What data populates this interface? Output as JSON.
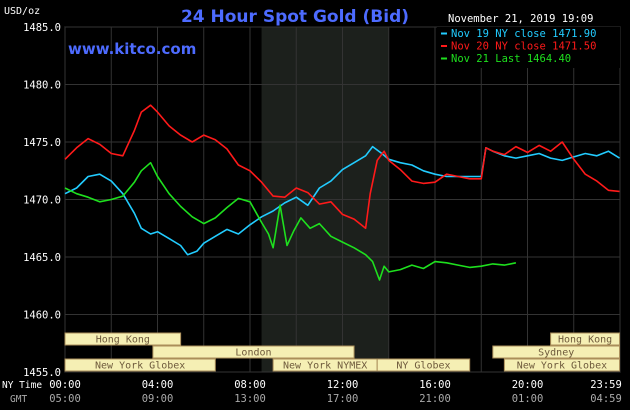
{
  "header": {
    "title": "24 Hour Spot Gold (Bid)",
    "datetime": "November 21, 2019 19:09",
    "unit": "USD/oz",
    "brand": "www.kitco.com"
  },
  "colors": {
    "background": "#000000",
    "plot_bg": "#000000",
    "shade": "#1c201c",
    "grid": "#333333",
    "axis_text": "#ffffff",
    "title": "#4d6bff",
    "brand": "#4d6bff",
    "nov19": "#22ccff",
    "nov20": "#ff1a1a",
    "nov21": "#1ee01e",
    "session_bg": "#f5efb4",
    "session_border": "#aa8e5a",
    "session_text": "#6e5a3c"
  },
  "legend": [
    {
      "label": "Nov 19 NY close 1471.90",
      "color": "#22ccff"
    },
    {
      "label": "Nov 20 NY close 1471.50",
      "color": "#ff1a1a"
    },
    {
      "label": "Nov 21 Last 1464.40",
      "color": "#1ee01e"
    }
  ],
  "axes": {
    "y_ticks": [
      "1485.0",
      "1480.0",
      "1475.0",
      "1470.0",
      "1465.0",
      "1460.0",
      "1455.0"
    ],
    "ny_label": "NY Time",
    "gmt_label": "GMT",
    "ny_ticks": [
      "00:00",
      "04:00",
      "08:00",
      "12:00",
      "16:00",
      "20:00",
      "23:59"
    ],
    "gmt_ticks": [
      "05:00",
      "09:00",
      "13:00",
      "17:00",
      "21:00",
      "01:00",
      "04:59"
    ]
  },
  "sessions": [
    {
      "label": "Hong Kong",
      "start": 0,
      "end": 5,
      "row": 0
    },
    {
      "label": "Hong Kong",
      "start": 21,
      "end": 23.98,
      "row": 0
    },
    {
      "label": "London",
      "start": 3.8,
      "end": 12.5,
      "row": 1
    },
    {
      "label": "Sydney",
      "start": 18.5,
      "end": 23.98,
      "row": 1
    },
    {
      "label": "New York Globex",
      "start": 0,
      "end": 6.5,
      "row": 2
    },
    {
      "label": "New York NYMEX",
      "start": 9,
      "end": 13.5,
      "row": 2
    },
    {
      "label": "NY Globex",
      "start": 13.5,
      "end": 17.5,
      "row": 2
    },
    {
      "label": "New York Globex",
      "start": 19,
      "end": 23.98,
      "row": 2
    }
  ],
  "chart_data": {
    "type": "line",
    "title": "24 Hour Spot Gold (Bid)",
    "ylabel": "USD/oz",
    "xlabel": "NY Time",
    "xlim": [
      0,
      24
    ],
    "ylim": [
      1455,
      1485
    ],
    "shaded_x": [
      8.5,
      14
    ],
    "grid": true,
    "legend_position": "top-right",
    "series": [
      {
        "name": "Nov 19 NY close 1471.90",
        "color": "#22ccff",
        "x": [
          0,
          0.5,
          1,
          1.5,
          2,
          2.5,
          3,
          3.3,
          3.7,
          4,
          4.5,
          5,
          5.3,
          5.7,
          6,
          6.5,
          7,
          7.5,
          8,
          8.5,
          9,
          9.5,
          10,
          10.5,
          11,
          11.5,
          12,
          12.5,
          13,
          13.3,
          13.7,
          14,
          14.5,
          15,
          15.5,
          16,
          16.5,
          17,
          17.5,
          18,
          18.2,
          18.5,
          19,
          19.5,
          20,
          20.5,
          21,
          21.5,
          22,
          22.5,
          23,
          23.5,
          23.98
        ],
        "values": [
          1470.5,
          1471.0,
          1472.0,
          1472.2,
          1471.6,
          1470.5,
          1468.8,
          1467.5,
          1467.0,
          1467.2,
          1466.6,
          1466.0,
          1465.2,
          1465.5,
          1466.2,
          1466.8,
          1467.4,
          1467.0,
          1467.8,
          1468.5,
          1469.0,
          1469.7,
          1470.2,
          1469.5,
          1471.0,
          1471.6,
          1472.6,
          1473.2,
          1473.8,
          1474.6,
          1474.0,
          1473.5,
          1473.2,
          1473.0,
          1472.5,
          1472.2,
          1472.0,
          1472.0,
          1472.0,
          1472.0,
          1474.5,
          1474.2,
          1473.8,
          1473.6,
          1473.8,
          1474.0,
          1473.6,
          1473.4,
          1473.7,
          1474.0,
          1473.8,
          1474.2,
          1473.6
        ]
      },
      {
        "name": "Nov 20 NY close 1471.50",
        "color": "#ff1a1a",
        "x": [
          0,
          0.5,
          1,
          1.5,
          2,
          2.5,
          3,
          3.3,
          3.7,
          4,
          4.5,
          5,
          5.5,
          6,
          6.5,
          7,
          7.5,
          8,
          8.5,
          9,
          9.5,
          10,
          10.5,
          11,
          11.5,
          12,
          12.5,
          13,
          13.2,
          13.5,
          13.8,
          14,
          14.5,
          15,
          15.5,
          16,
          16.5,
          17,
          17.5,
          18,
          18.2,
          18.5,
          19,
          19.5,
          20,
          20.5,
          21,
          21.5,
          22,
          22.5,
          23,
          23.5,
          23.98
        ],
        "values": [
          1473.5,
          1474.5,
          1475.3,
          1474.8,
          1474.0,
          1473.8,
          1476.0,
          1477.6,
          1478.2,
          1477.6,
          1476.4,
          1475.6,
          1475.0,
          1475.6,
          1475.2,
          1474.4,
          1473.0,
          1472.5,
          1471.5,
          1470.3,
          1470.2,
          1471.0,
          1470.6,
          1469.6,
          1469.8,
          1468.7,
          1468.3,
          1467.5,
          1470.5,
          1473.4,
          1474.2,
          1473.4,
          1472.6,
          1471.6,
          1471.4,
          1471.5,
          1472.2,
          1472.0,
          1471.8,
          1471.8,
          1474.5,
          1474.2,
          1473.9,
          1474.6,
          1474.1,
          1474.7,
          1474.2,
          1475.0,
          1473.5,
          1472.2,
          1471.6,
          1470.8,
          1470.7
        ]
      },
      {
        "name": "Nov 21 Last 1464.40",
        "color": "#1ee01e",
        "x": [
          0,
          0.5,
          1,
          1.5,
          2,
          2.5,
          3,
          3.3,
          3.7,
          4,
          4.5,
          5,
          5.5,
          6,
          6.5,
          7,
          7.5,
          8,
          8.5,
          8.8,
          9,
          9.3,
          9.6,
          9.9,
          10.2,
          10.6,
          11,
          11.5,
          12,
          12.5,
          13,
          13.3,
          13.6,
          13.8,
          14,
          14.5,
          15,
          15.5,
          16,
          16.5,
          17,
          17.5,
          18,
          18.5,
          19,
          19.5
        ],
        "values": [
          1471.0,
          1470.5,
          1470.2,
          1469.8,
          1470.0,
          1470.3,
          1471.5,
          1472.5,
          1473.2,
          1472.0,
          1470.5,
          1469.4,
          1468.5,
          1467.9,
          1468.4,
          1469.3,
          1470.1,
          1469.8,
          1468.0,
          1467.0,
          1465.8,
          1469.5,
          1466.0,
          1467.3,
          1468.4,
          1467.5,
          1467.9,
          1466.8,
          1466.3,
          1465.8,
          1465.2,
          1464.6,
          1463.0,
          1464.2,
          1463.7,
          1463.9,
          1464.3,
          1464.0,
          1464.6,
          1464.5,
          1464.3,
          1464.1,
          1464.2,
          1464.4,
          1464.3,
          1464.5
        ]
      }
    ]
  }
}
